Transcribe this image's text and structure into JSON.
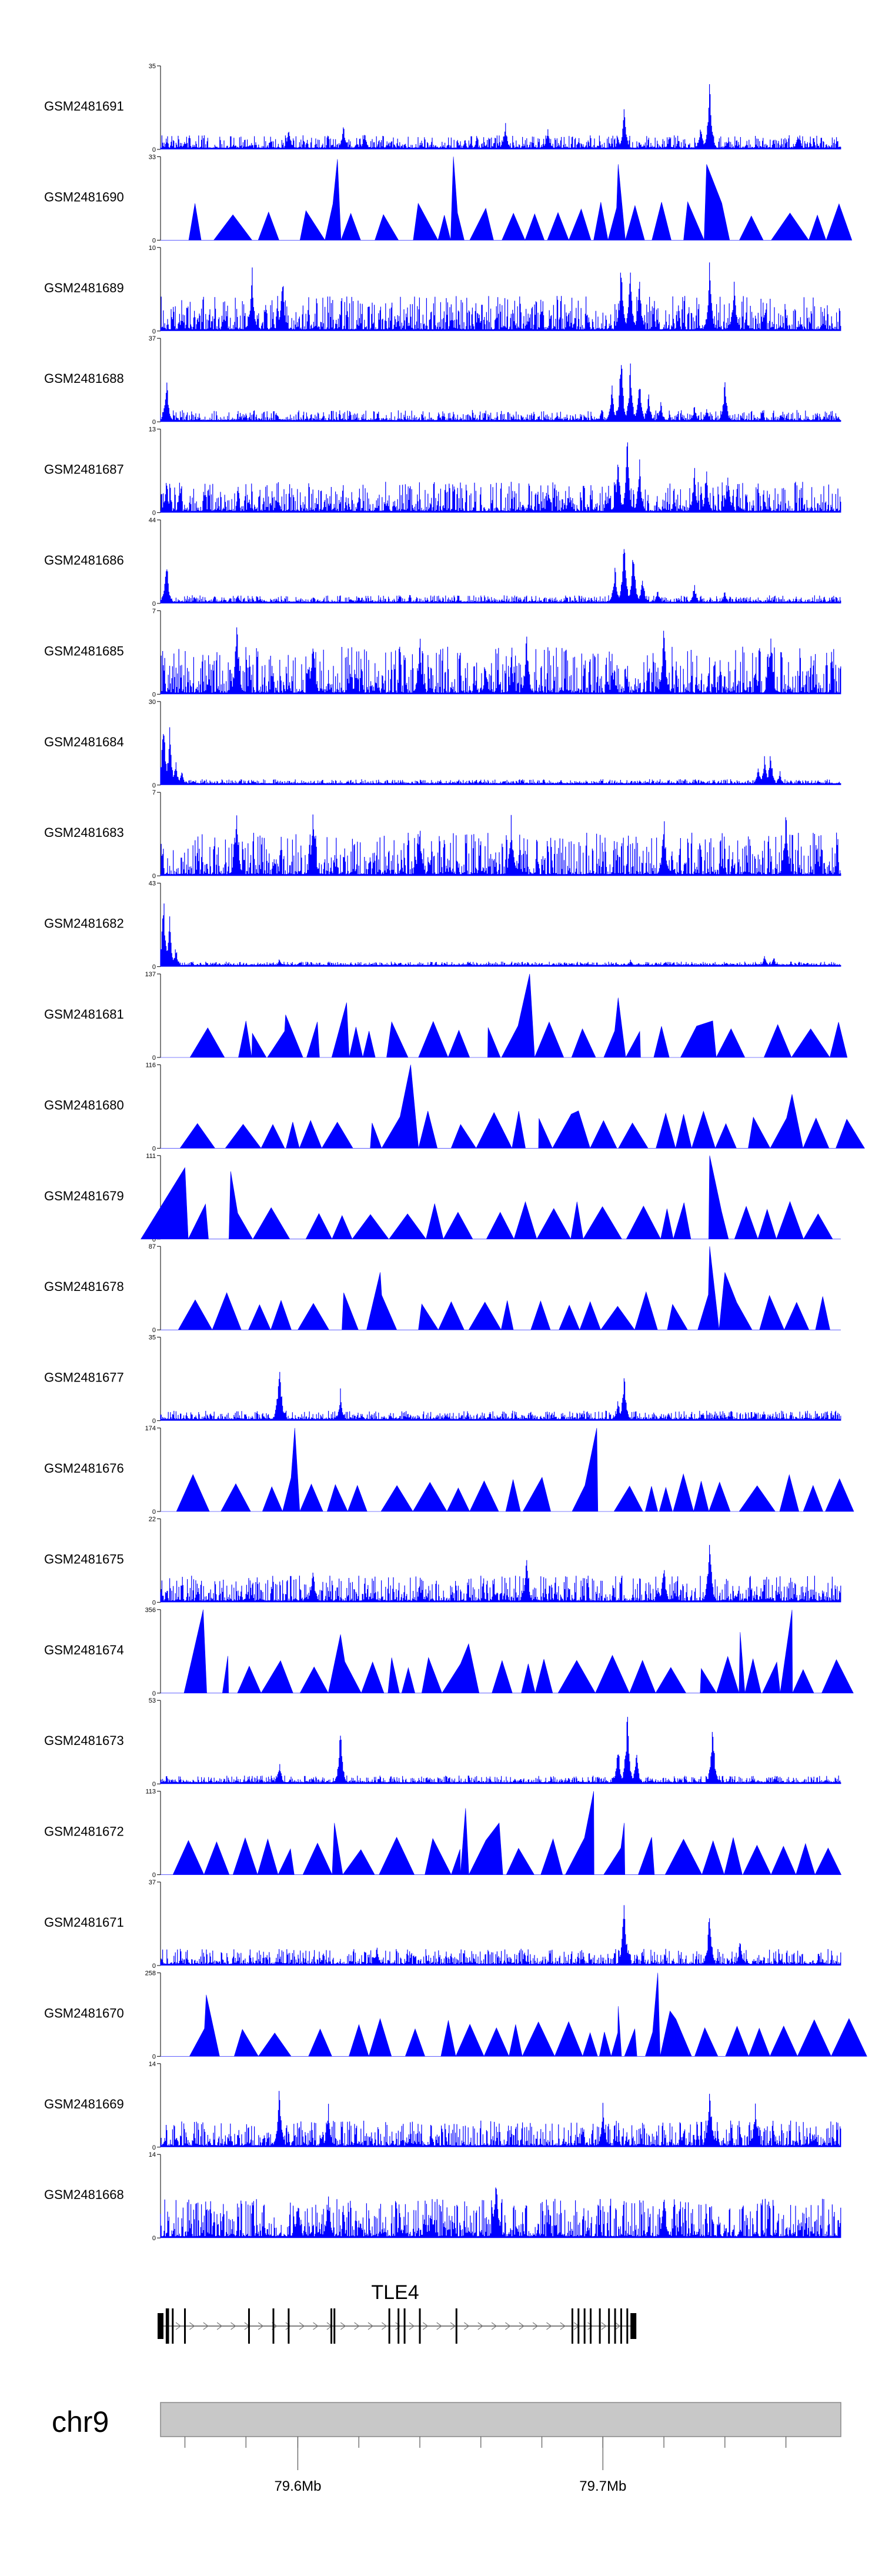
{
  "chart_data": {
    "type": "area",
    "track_type": "coverage-histogram",
    "genome": {
      "chromosome": "chr9",
      "xlim": [
        79.555,
        79.778
      ],
      "xlim_units": "Mb",
      "axis_ticks": [
        {
          "value": 79.6,
          "label": "79.6Mb"
        },
        {
          "value": 79.7,
          "label": "79.7Mb"
        }
      ],
      "minor_ticks": [
        79.563,
        79.583,
        79.6,
        79.62,
        79.64,
        79.66,
        79.68,
        79.7,
        79.72,
        79.74,
        79.76
      ]
    },
    "color": "#0000ff",
    "series": [
      {
        "name": "GSM2481691",
        "ymax": 35,
        "style": "dense",
        "seed": 1,
        "peaks": [
          [
            79.563,
            4
          ],
          [
            79.597,
            10
          ],
          [
            79.615,
            12
          ],
          [
            79.622,
            8
          ],
          [
            79.668,
            13
          ],
          [
            79.682,
            10
          ],
          [
            79.707,
            20
          ],
          [
            79.705,
            6
          ],
          [
            79.735,
            32
          ],
          [
            79.732,
            12
          ],
          [
            79.764,
            8
          ]
        ]
      },
      {
        "name": "GSM2481690",
        "ymax": 33,
        "style": "tri",
        "seed": 2,
        "peaks": [
          [
            79.613,
            32
          ],
          [
            79.651,
            33
          ],
          [
            79.705,
            30
          ],
          [
            79.734,
            30
          ]
        ]
      },
      {
        "name": "GSM2481689",
        "ymax": 10,
        "style": "dense",
        "seed": 3,
        "noise": 0.4,
        "peaks": [
          [
            79.706,
            10
          ],
          [
            79.709,
            9
          ],
          [
            79.712,
            8
          ],
          [
            79.585,
            9
          ],
          [
            79.595,
            8
          ],
          [
            79.735,
            9
          ],
          [
            79.743,
            7
          ]
        ]
      },
      {
        "name": "GSM2481688",
        "ymax": 37,
        "style": "dense",
        "seed": 4,
        "noise": 0.12,
        "peaks": [
          [
            79.557,
            24
          ],
          [
            79.706,
            37
          ],
          [
            79.709,
            30
          ],
          [
            79.712,
            22
          ],
          [
            79.703,
            18
          ],
          [
            79.715,
            14
          ],
          [
            79.719,
            10
          ],
          [
            79.73,
            8
          ],
          [
            79.734,
            7
          ],
          [
            79.74,
            23
          ]
        ]
      },
      {
        "name": "GSM2481687",
        "ymax": 13,
        "style": "dense",
        "seed": 5,
        "noise": 0.35,
        "peaks": [
          [
            79.708,
            13
          ],
          [
            79.705,
            11
          ],
          [
            79.712,
            9
          ],
          [
            79.557,
            6
          ],
          [
            79.73,
            8
          ],
          [
            79.734,
            7
          ],
          [
            79.741,
            7
          ]
        ]
      },
      {
        "name": "GSM2481686",
        "ymax": 44,
        "style": "dense",
        "seed": 6,
        "noise": 0.08,
        "peaks": [
          [
            79.557,
            28
          ],
          [
            79.707,
            44
          ],
          [
            79.71,
            35
          ],
          [
            79.704,
            24
          ],
          [
            79.713,
            18
          ],
          [
            79.718,
            8
          ],
          [
            79.73,
            12
          ],
          [
            79.74,
            8
          ]
        ]
      },
      {
        "name": "GSM2481685",
        "ymax": 7,
        "style": "dense",
        "seed": 7,
        "noise": 0.55,
        "peaks": [
          [
            79.58,
            7
          ],
          [
            79.605,
            6
          ],
          [
            79.64,
            6
          ],
          [
            79.675,
            6
          ],
          [
            79.72,
            7
          ],
          [
            79.755,
            6
          ]
        ]
      },
      {
        "name": "GSM2481684",
        "ymax": 30,
        "style": "dense",
        "seed": 8,
        "noise": 0.05,
        "peaks": [
          [
            79.556,
            30
          ],
          [
            79.558,
            22
          ],
          [
            79.56,
            10
          ],
          [
            79.562,
            6
          ],
          [
            79.753,
            12
          ],
          [
            79.755,
            14
          ],
          [
            79.751,
            8
          ],
          [
            79.758,
            6
          ]
        ]
      },
      {
        "name": "GSM2481683",
        "ymax": 7,
        "style": "dense",
        "seed": 9,
        "noise": 0.5,
        "peaks": [
          [
            79.58,
            6
          ],
          [
            79.605,
            7
          ],
          [
            79.64,
            5
          ],
          [
            79.67,
            6
          ],
          [
            79.72,
            6
          ],
          [
            79.76,
            6
          ]
        ]
      },
      {
        "name": "GSM2481682",
        "ymax": 43,
        "style": "dense",
        "seed": 10,
        "noise": 0.04,
        "peaks": [
          [
            79.556,
            43
          ],
          [
            79.558,
            28
          ],
          [
            79.56,
            12
          ],
          [
            79.594,
            5
          ],
          [
            79.709,
            4
          ],
          [
            79.753,
            7
          ],
          [
            79.756,
            6
          ]
        ]
      },
      {
        "name": "GSM2481681",
        "ymax": 137,
        "style": "tri",
        "seed": 11,
        "peaks": [
          [
            79.583,
            60
          ],
          [
            79.596,
            70
          ],
          [
            79.616,
            90
          ],
          [
            79.676,
            137
          ],
          [
            79.705,
            98
          ],
          [
            79.736,
            60
          ]
        ]
      },
      {
        "name": "GSM2481680",
        "ymax": 116,
        "style": "tri",
        "seed": 12,
        "peaks": [
          [
            79.637,
            116
          ],
          [
            79.692,
            52
          ],
          [
            79.762,
            75
          ]
        ]
      },
      {
        "name": "GSM2481679",
        "ymax": 111,
        "style": "tri",
        "seed": 13,
        "peaks": [
          [
            79.563,
            95
          ],
          [
            79.578,
            90
          ],
          [
            79.735,
            111
          ]
        ]
      },
      {
        "name": "GSM2481678",
        "ymax": 87,
        "style": "tri",
        "seed": 14,
        "peaks": [
          [
            79.627,
            60
          ],
          [
            79.735,
            87
          ],
          [
            79.74,
            60
          ]
        ]
      },
      {
        "name": "GSM2481677",
        "ymax": 35,
        "style": "dense",
        "seed": 15,
        "noise": 0.1,
        "peaks": [
          [
            79.594,
            33
          ],
          [
            79.614,
            14
          ],
          [
            79.707,
            24
          ],
          [
            79.705,
            10
          ]
        ]
      },
      {
        "name": "GSM2481676",
        "ymax": 174,
        "style": "tri",
        "seed": 16,
        "peaks": [
          [
            79.599,
            174
          ],
          [
            79.698,
            174
          ]
        ]
      },
      {
        "name": "GSM2481675",
        "ymax": 22,
        "style": "dense",
        "seed": 17,
        "noise": 0.3,
        "peaks": [
          [
            79.735,
            22
          ],
          [
            79.675,
            14
          ],
          [
            79.605,
            12
          ],
          [
            79.72,
            12
          ]
        ]
      },
      {
        "name": "GSM2481674",
        "ymax": 356,
        "style": "tri",
        "seed": 18,
        "peaks": [
          [
            79.569,
            356
          ],
          [
            79.569,
            350
          ],
          [
            79.614,
            250
          ],
          [
            79.656,
            210
          ],
          [
            79.762,
            355
          ],
          [
            79.745,
            260
          ]
        ]
      },
      {
        "name": "GSM2481673",
        "ymax": 53,
        "style": "dense",
        "seed": 19,
        "noise": 0.08,
        "peaks": [
          [
            79.708,
            53
          ],
          [
            79.705,
            30
          ],
          [
            79.711,
            25
          ],
          [
            79.614,
            42
          ],
          [
            79.736,
            47
          ],
          [
            79.594,
            16
          ]
        ]
      },
      {
        "name": "GSM2481672",
        "ymax": 113,
        "style": "tri",
        "seed": 20,
        "peaks": [
          [
            79.612,
            70
          ],
          [
            79.655,
            90
          ],
          [
            79.666,
            70
          ],
          [
            79.697,
            113
          ],
          [
            79.707,
            70
          ]
        ]
      },
      {
        "name": "GSM2481671",
        "ymax": 37,
        "style": "dense",
        "seed": 21,
        "noise": 0.18,
        "peaks": [
          [
            79.707,
            37
          ],
          [
            79.735,
            30
          ],
          [
            79.626,
            10
          ],
          [
            79.745,
            14
          ]
        ]
      },
      {
        "name": "GSM2481670",
        "ymax": 258,
        "style": "tri",
        "seed": 22,
        "peaks": [
          [
            79.57,
            190
          ],
          [
            79.718,
            258
          ],
          [
            79.722,
            140
          ],
          [
            79.705,
            155
          ]
        ]
      },
      {
        "name": "GSM2481669",
        "ymax": 14,
        "style": "dense",
        "seed": 23,
        "noise": 0.3,
        "peaks": [
          [
            79.594,
            12
          ],
          [
            79.735,
            14
          ],
          [
            79.61,
            8
          ],
          [
            79.7,
            8
          ],
          [
            79.75,
            9
          ]
        ]
      },
      {
        "name": "GSM2481668",
        "ymax": 14,
        "style": "dense",
        "seed": 24,
        "noise": 0.45,
        "peaks": [
          [
            79.665,
            14
          ],
          [
            79.61,
            9
          ],
          [
            79.72,
            9
          ],
          [
            79.6,
            8
          ]
        ]
      }
    ],
    "gene": {
      "name": "TLE4",
      "start": 79.555,
      "end": 79.71,
      "strand": "+",
      "exons": [
        79.555,
        79.557,
        79.5575,
        79.559,
        79.563,
        79.584,
        79.592,
        79.597,
        79.611,
        79.612,
        79.63,
        79.633,
        79.635,
        79.64,
        79.652,
        79.69,
        79.692,
        79.694,
        79.696,
        79.699,
        79.702,
        79.704,
        79.706,
        79.708,
        79.71
      ]
    }
  }
}
